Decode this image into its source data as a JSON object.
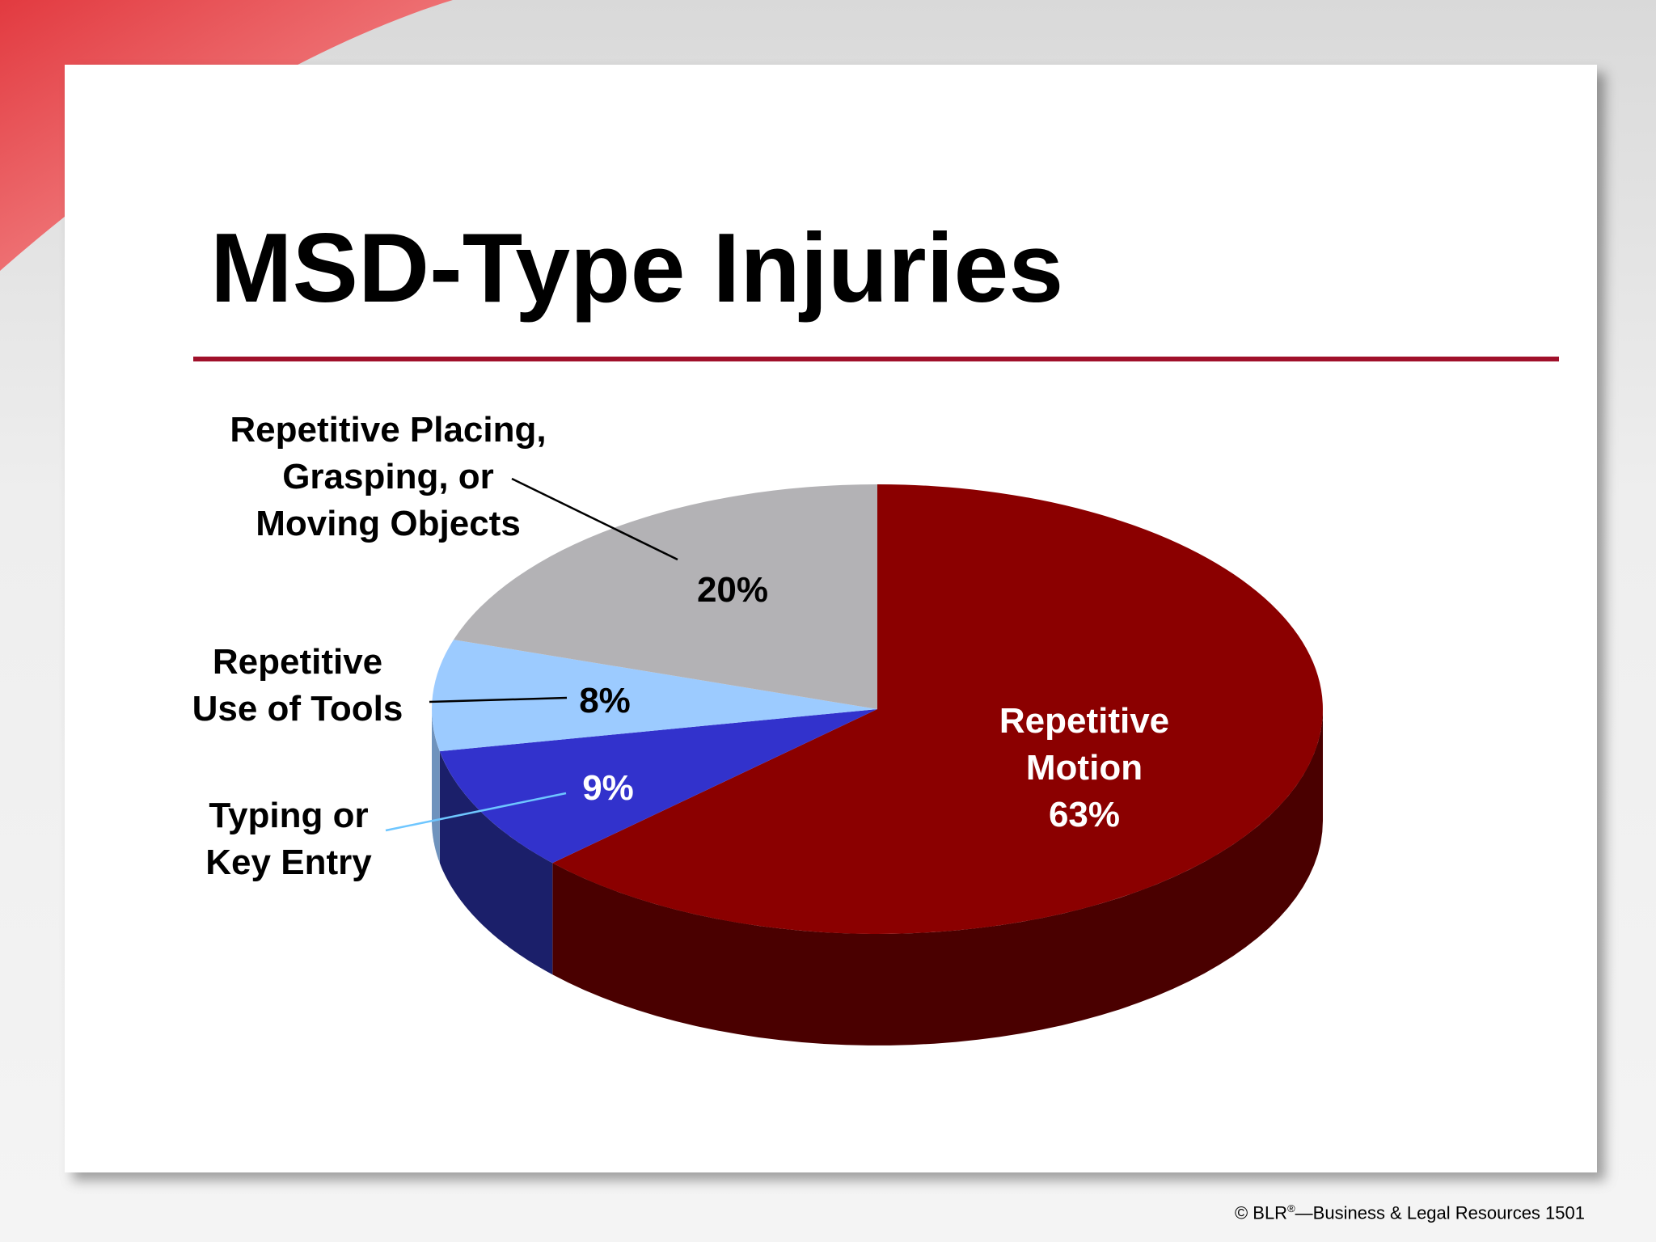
{
  "slide": {
    "title": "MSD-Type Injuries",
    "footer": {
      "prefix": "© BLR",
      "registered_mark": "®",
      "suffix": "—Business & Legal Resources 1501"
    }
  },
  "colors": {
    "accent_rule": "#a0102a",
    "corner_swoosh": "#d9333b"
  },
  "chart_data": {
    "type": "pie",
    "style": "3d",
    "title": "",
    "slices": [
      {
        "label": [
          "Repetitive",
          "Motion"
        ],
        "value": 63,
        "value_label": "63%",
        "color": "#8b0000",
        "side_color": "#4a0000",
        "label_placement": "inside"
      },
      {
        "label": [
          "Typing or",
          "Key Entry"
        ],
        "value": 9,
        "value_label": "9%",
        "color": "#3232cc",
        "side_color": "#1b1f6a",
        "label_placement": "outside"
      },
      {
        "label": [
          "Repetitive",
          "Use of Tools"
        ],
        "value": 8,
        "value_label": "8%",
        "color": "#9ccbff",
        "side_color": "#6f93bd",
        "label_placement": "outside"
      },
      {
        "label": [
          "Repetitive Placing,",
          "Grasping, or",
          "Moving Objects"
        ],
        "value": 20,
        "value_label": "20%",
        "color": "#b3b2b5",
        "side_color": "#7c7b7e",
        "label_placement": "outside"
      }
    ]
  }
}
